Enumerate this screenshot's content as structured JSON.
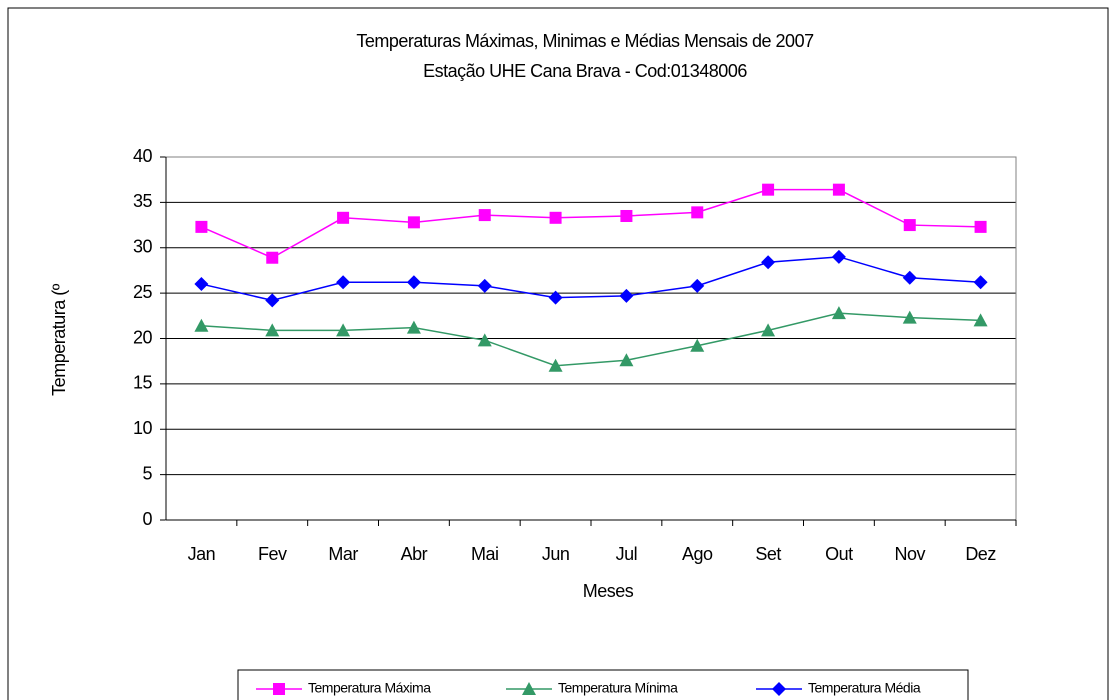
{
  "chart_data": {
    "type": "line",
    "title": "Temperaturas Máximas, Minimas e Médias Mensais de 2007",
    "subtitle": "Estação UHE Cana Brava - Cod:01348006",
    "x_label": "Meses",
    "y_label": "Temperatura (º",
    "categories": [
      "Jan",
      "Fev",
      "Mar",
      "Abr",
      "Mai",
      "Jun",
      "Jul",
      "Ago",
      "Set",
      "Out",
      "Nov",
      "Dez"
    ],
    "series": [
      {
        "name": "Temperatura Máxima",
        "color": "#ff00ff",
        "marker": "square",
        "values": [
          32.3,
          28.9,
          33.3,
          32.8,
          33.6,
          33.3,
          33.5,
          33.9,
          36.4,
          36.4,
          32.5,
          32.3
        ]
      },
      {
        "name": "Temperatura Mínima",
        "color": "#339966",
        "marker": "triangle",
        "values": [
          21.4,
          20.9,
          20.9,
          21.2,
          19.8,
          17.0,
          17.6,
          19.2,
          20.9,
          22.8,
          22.3,
          22.0
        ]
      },
      {
        "name": "Temperatura Média",
        "color": "#0000ff",
        "marker": "diamond",
        "values": [
          26.0,
          24.2,
          26.2,
          26.2,
          25.8,
          24.5,
          24.7,
          25.8,
          28.4,
          29.0,
          26.7,
          26.2
        ]
      }
    ],
    "ylim": [
      0,
      40
    ],
    "yticks": [
      0,
      5,
      10,
      15,
      20,
      25,
      30,
      35,
      40
    ],
    "grid": true,
    "legend": "bottom"
  }
}
